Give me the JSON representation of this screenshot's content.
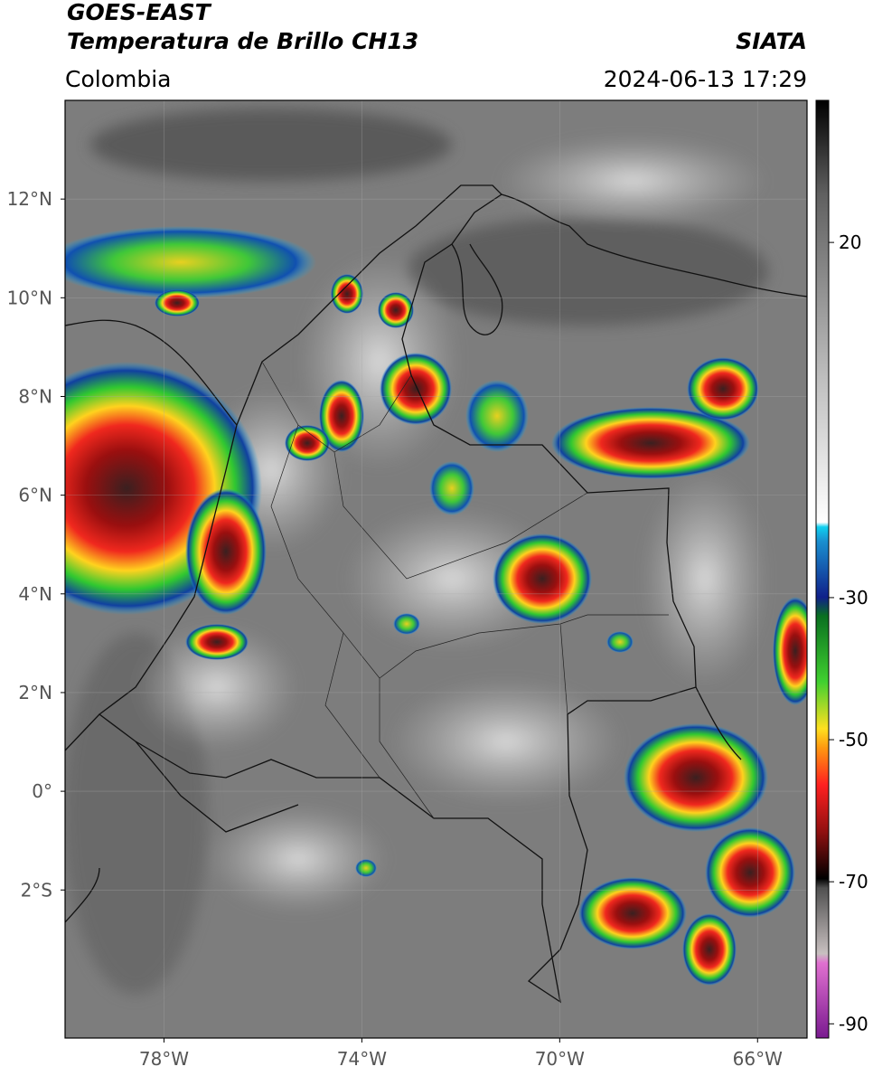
{
  "header": {
    "satellite": "GOES-EAST",
    "product": "Temperatura de Brillo CH13",
    "source": "SIATA",
    "region": "Colombia",
    "datetime": "2024-06-13 17:29"
  },
  "map": {
    "lon_range": [
      -80,
      -65
    ],
    "lat_range": [
      -5,
      14
    ],
    "lon_ticks": [
      {
        "value": -78,
        "label": "78°W"
      },
      {
        "value": -74,
        "label": "74°W"
      },
      {
        "value": -70,
        "label": "70°W"
      },
      {
        "value": -66,
        "label": "66°W"
      }
    ],
    "lat_ticks": [
      {
        "value": 12,
        "label": "12°N"
      },
      {
        "value": 10,
        "label": "10°N"
      },
      {
        "value": 8,
        "label": "8°N"
      },
      {
        "value": 6,
        "label": "6°N"
      },
      {
        "value": 4,
        "label": "4°N"
      },
      {
        "value": 2,
        "label": "2°N"
      },
      {
        "value": 0,
        "label": "0°"
      },
      {
        "value": -2,
        "label": "2°S"
      }
    ]
  },
  "colorbar": {
    "range": [
      -92,
      40
    ],
    "ticks": [
      20,
      -30,
      -50,
      -70,
      -90
    ]
  }
}
